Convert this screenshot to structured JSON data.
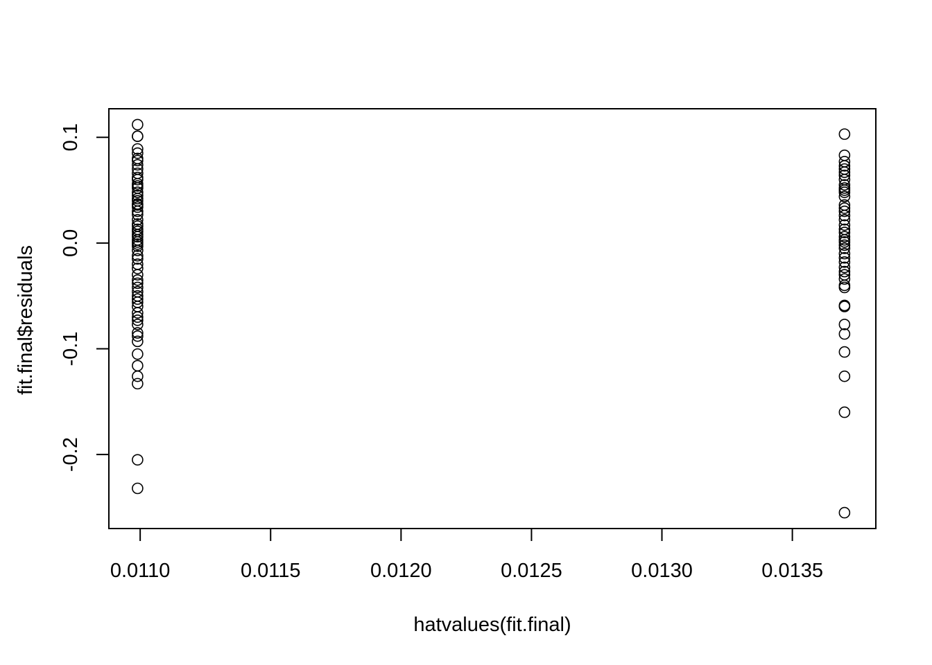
{
  "chart_data": {
    "type": "scatter",
    "xlabel": "hatvalues(fit.final)",
    "ylabel": "fit.final$residuals",
    "xlim": [
      0.01088,
      0.01382
    ],
    "ylim": [
      -0.27,
      0.127
    ],
    "xticks": [
      {
        "value": 0.011,
        "label": "0.0110"
      },
      {
        "value": 0.0115,
        "label": "0.0115"
      },
      {
        "value": 0.012,
        "label": "0.0120"
      },
      {
        "value": 0.0125,
        "label": "0.0125"
      },
      {
        "value": 0.013,
        "label": "0.0130"
      },
      {
        "value": 0.0135,
        "label": "0.0135"
      }
    ],
    "yticks": [
      {
        "value": -0.2,
        "label": "-0.2"
      },
      {
        "value": -0.1,
        "label": "-0.1"
      },
      {
        "value": 0.0,
        "label": "0.0"
      },
      {
        "value": 0.1,
        "label": "0.1"
      }
    ],
    "series": [
      {
        "x": 0.01099,
        "y": [
          0.112,
          0.101,
          0.101,
          0.089,
          0.085,
          0.08,
          0.078,
          0.074,
          0.07,
          0.066,
          0.062,
          0.06,
          0.056,
          0.054,
          0.052,
          0.048,
          0.045,
          0.042,
          0.04,
          0.037,
          0.036,
          0.034,
          0.03,
          0.027,
          0.022,
          0.018,
          0.016,
          0.013,
          0.011,
          0.008,
          0.006,
          0.003,
          0.001,
          -0.001,
          -0.003,
          -0.007,
          -0.012,
          -0.015,
          -0.02,
          -0.024,
          -0.03,
          -0.035,
          -0.038,
          -0.042,
          -0.046,
          -0.05,
          -0.053,
          -0.056,
          -0.06,
          -0.066,
          -0.07,
          -0.073,
          -0.077,
          -0.085,
          -0.088,
          -0.093,
          -0.105,
          -0.116,
          -0.126,
          -0.133,
          -0.205,
          -0.232
        ]
      },
      {
        "x": 0.0137,
        "y": [
          0.103,
          0.083,
          0.077,
          0.073,
          0.07,
          0.067,
          0.064,
          0.06,
          0.055,
          0.052,
          0.05,
          0.048,
          0.044,
          0.036,
          0.033,
          0.03,
          0.026,
          0.022,
          0.017,
          0.013,
          0.01,
          0.006,
          0.003,
          0.001,
          -0.002,
          -0.005,
          -0.01,
          -0.014,
          -0.018,
          -0.023,
          -0.027,
          -0.03,
          -0.034,
          -0.04,
          -0.042,
          -0.059,
          -0.06,
          -0.077,
          -0.086,
          -0.103,
          -0.126,
          -0.16,
          -0.255
        ]
      }
    ]
  }
}
